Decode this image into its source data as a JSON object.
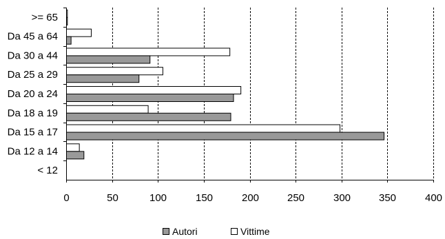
{
  "chart_data": {
    "type": "bar",
    "orientation": "horizontal",
    "categories": [
      "< 12",
      "Da 12 a 14",
      "Da 15 a 17",
      "Da 18 a 19",
      "Da 20 a 24",
      "Da 25 a 29",
      "Da 30 a 44",
      "Da 45 a 64",
      ">= 65"
    ],
    "series": [
      {
        "name": "Autori",
        "color": "#999999",
        "values": [
          0,
          19,
          346,
          179,
          182,
          79,
          91,
          5,
          1
        ]
      },
      {
        "name": "Vittime",
        "color": "#ffffff",
        "values": [
          0,
          14,
          298,
          89,
          190,
          105,
          178,
          27,
          1
        ]
      }
    ],
    "xlim": [
      0,
      400
    ],
    "xticks": [
      0,
      50,
      100,
      150,
      200,
      250,
      300,
      350,
      400
    ],
    "grid": "vertical dashed",
    "legend": "bottom-center"
  }
}
